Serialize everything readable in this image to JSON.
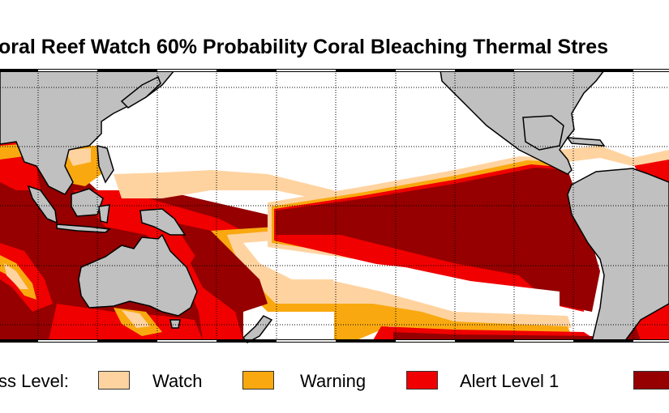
{
  "title": "oral Reef Watch 60% Probability Coral Bleaching Thermal Stres",
  "legend": {
    "label": "ss Level:",
    "items": [
      {
        "label": "Watch",
        "color": "#ffd3a0"
      },
      {
        "label": "Warning",
        "color": "#f9a90f"
      },
      {
        "label": "Alert Level 1",
        "color": "#f00000"
      },
      {
        "label": "",
        "color": "#960000"
      }
    ]
  },
  "colors": {
    "land": "#c0c0c0",
    "no_stress": "#ffffff",
    "watch": "#ffd3a0",
    "warning": "#f9a90f",
    "alert1": "#f00000",
    "alert2": "#960000"
  }
}
